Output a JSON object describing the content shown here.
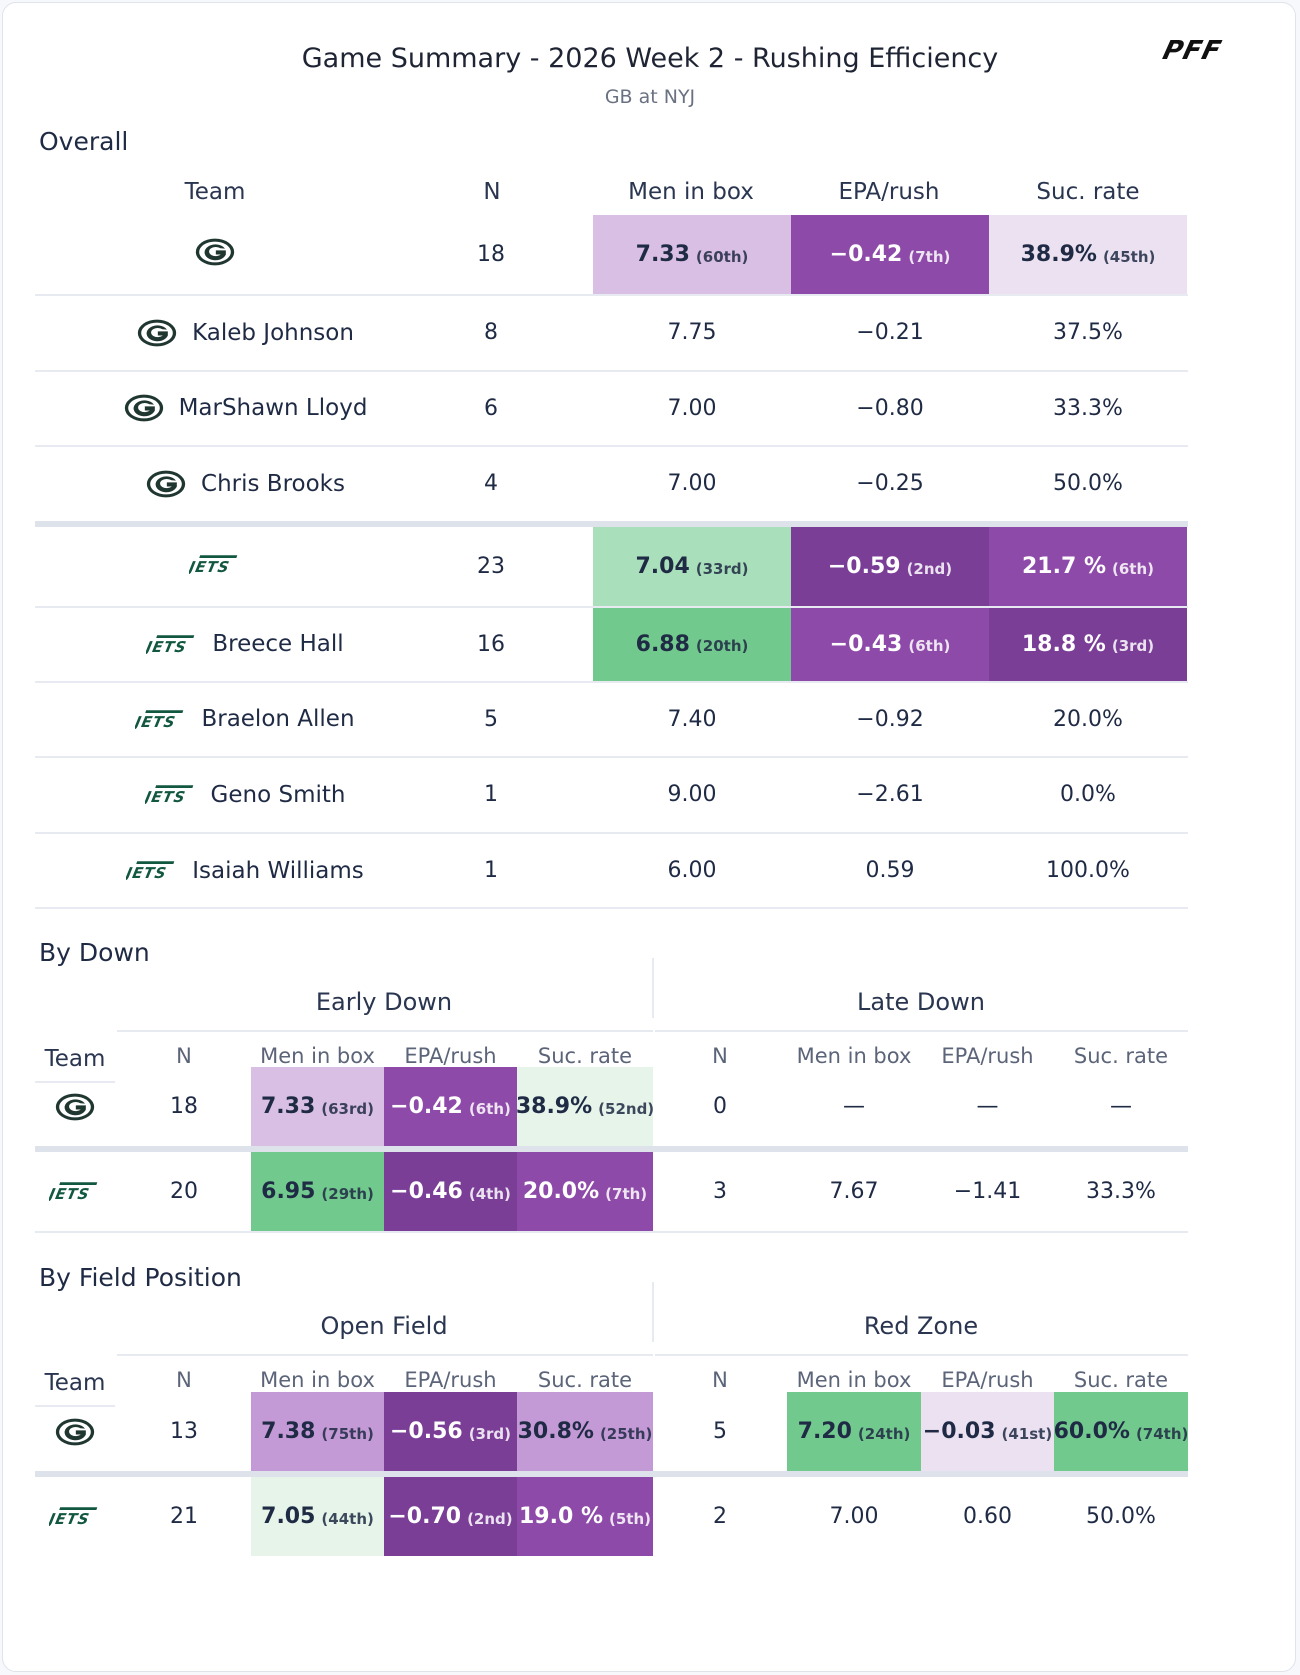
{
  "header": {
    "title": "Game Summary - 2026 Week 2 - Rushing Efficiency",
    "subtitle": "GB at NYJ",
    "logo_icon": "pff-logo"
  },
  "colors": {
    "purple_dark": "#7b3e97",
    "purple_mid": "#8e4aa8",
    "purple_light": "#d9bfe4",
    "purple_pale": "#ece1f1",
    "green_mid": "#72c98e",
    "green_light": "#a9dfba",
    "green_pale": "#e6f4ea",
    "gb_icon": "#203731",
    "nyj_icon": "#125740"
  },
  "overall": {
    "section_label": "Overall",
    "columns": [
      "Team",
      "N",
      "Men in box",
      "EPA/rush",
      "Suc. rate"
    ],
    "rows": [
      {
        "icon": "gb-logo-icon",
        "name": "",
        "n": "18",
        "box": "7.33",
        "box_rank": "(60th)",
        "epa": "−0.42",
        "epa_rank": "(7th)",
        "suc": "38.9%",
        "suc_rank": "(45th)"
      },
      {
        "icon": "gb-logo-icon",
        "name": "Kaleb Johnson",
        "n": "8",
        "box": "7.75",
        "box_rank": "",
        "epa": "−0.21",
        "epa_rank": "",
        "suc": "37.5%",
        "suc_rank": ""
      },
      {
        "icon": "gb-logo-icon",
        "name": "MarShawn Lloyd",
        "n": "6",
        "box": "7.00",
        "box_rank": "",
        "epa": "−0.80",
        "epa_rank": "",
        "suc": "33.3%",
        "suc_rank": ""
      },
      {
        "icon": "gb-logo-icon",
        "name": "Chris Brooks",
        "n": "4",
        "box": "7.00",
        "box_rank": "",
        "epa": "−0.25",
        "epa_rank": "",
        "suc": "50.0%",
        "suc_rank": ""
      },
      {
        "icon": "nyj-logo-icon",
        "name": "",
        "n": "23",
        "box": "7.04",
        "box_rank": "(33rd)",
        "epa": "−0.59",
        "epa_rank": "(2nd)",
        "suc": "21.7 %",
        "suc_rank": "(6th)"
      },
      {
        "icon": "nyj-logo-icon",
        "name": "Breece Hall",
        "n": "16",
        "box": "6.88",
        "box_rank": "(20th)",
        "epa": "−0.43",
        "epa_rank": "(6th)",
        "suc": "18.8 %",
        "suc_rank": "(3rd)"
      },
      {
        "icon": "nyj-logo-icon",
        "name": "Braelon Allen",
        "n": "5",
        "box": "7.40",
        "box_rank": "",
        "epa": "−0.92",
        "epa_rank": "",
        "suc": "20.0%",
        "suc_rank": ""
      },
      {
        "icon": "nyj-logo-icon",
        "name": "Geno Smith",
        "n": "1",
        "box": "9.00",
        "box_rank": "",
        "epa": "−2.61",
        "epa_rank": "",
        "suc": "0.0%",
        "suc_rank": ""
      },
      {
        "icon": "nyj-logo-icon",
        "name": "Isaiah Williams",
        "n": "1",
        "box": "6.00",
        "box_rank": "",
        "epa": "0.59",
        "epa_rank": "",
        "suc": "100.0%",
        "suc_rank": ""
      }
    ]
  },
  "by_down": {
    "section_label": "By Down",
    "team_label": "Team",
    "groups": [
      "Early Down",
      "Late Down"
    ],
    "subcolumns": [
      "N",
      "Men in box",
      "EPA/rush",
      "Suc. rate"
    ],
    "rows": [
      {
        "icon": "gb-logo-icon",
        "a": {
          "n": "18",
          "box": "7.33",
          "box_rank": "(63rd)",
          "epa": "−0.42",
          "epa_rank": "(6th)",
          "suc": "38.9%",
          "suc_rank": "(52nd)"
        },
        "b": {
          "n": "0",
          "box": "—",
          "box_rank": "",
          "epa": "—",
          "epa_rank": "",
          "suc": "—",
          "suc_rank": ""
        }
      },
      {
        "icon": "nyj-logo-icon",
        "a": {
          "n": "20",
          "box": "6.95",
          "box_rank": "(29th)",
          "epa": "−0.46",
          "epa_rank": "(4th)",
          "suc": "20.0%",
          "suc_rank": "(7th)"
        },
        "b": {
          "n": "3",
          "box": "7.67",
          "box_rank": "",
          "epa": "−1.41",
          "epa_rank": "",
          "suc": "33.3%",
          "suc_rank": ""
        }
      }
    ]
  },
  "by_field": {
    "section_label": "By Field Position",
    "team_label": "Team",
    "groups": [
      "Open Field",
      "Red Zone"
    ],
    "subcolumns": [
      "N",
      "Men in box",
      "EPA/rush",
      "Suc. rate"
    ],
    "rows": [
      {
        "icon": "gb-logo-icon",
        "a": {
          "n": "13",
          "box": "7.38",
          "box_rank": "(75th)",
          "epa": "−0.56",
          "epa_rank": "(3rd)",
          "suc": "30.8%",
          "suc_rank": "(25th)"
        },
        "b": {
          "n": "5",
          "box": "7.20",
          "box_rank": "(24th)",
          "epa": "−0.03",
          "epa_rank": "(41st)",
          "suc": "60.0%",
          "suc_rank": "(74th)"
        }
      },
      {
        "icon": "nyj-logo-icon",
        "a": {
          "n": "21",
          "box": "7.05",
          "box_rank": "(44th)",
          "epa": "−0.70",
          "epa_rank": "(2nd)",
          "suc": "19.0 %",
          "suc_rank": "(5th)"
        },
        "b": {
          "n": "2",
          "box": "7.00",
          "box_rank": "",
          "epa": "0.60",
          "epa_rank": "",
          "suc": "50.0%",
          "suc_rank": ""
        }
      }
    ]
  }
}
